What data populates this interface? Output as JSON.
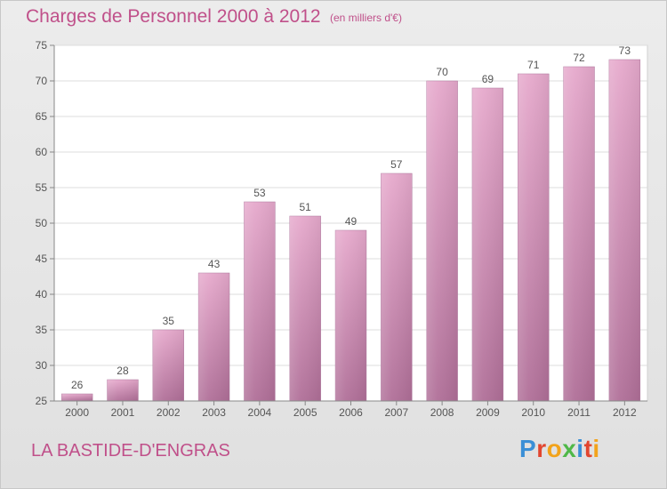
{
  "header": {
    "title": "Charges de Personnel 2000 à 2012",
    "subtitle": "(en milliers d'€)"
  },
  "footer": {
    "location": "LA BASTIDE-D'ENGRAS",
    "logo_text": "Proxiti",
    "logo_letters": [
      {
        "char": "P",
        "color": "#3a8fd6"
      },
      {
        "char": "r",
        "color": "#e2462f"
      },
      {
        "char": "o",
        "color": "#f2a31b"
      },
      {
        "char": "x",
        "color": "#4fb848"
      },
      {
        "char": "i",
        "color": "#3a8fd6"
      },
      {
        "char": "t",
        "color": "#e2462f"
      },
      {
        "char": "i",
        "color": "#f2a31b"
      }
    ]
  },
  "chart_data": {
    "type": "bar",
    "title": "Charges de Personnel 2000 à 2012",
    "subtitle": "(en milliers d'€)",
    "xlabel": "",
    "ylabel": "",
    "categories": [
      "2000",
      "2001",
      "2002",
      "2003",
      "2004",
      "2005",
      "2006",
      "2007",
      "2008",
      "2009",
      "2010",
      "2011",
      "2012"
    ],
    "values": [
      26,
      28,
      35,
      43,
      53,
      51,
      49,
      57,
      70,
      69,
      71,
      72,
      73
    ],
    "ylim": [
      25,
      75
    ],
    "yticks": [
      25,
      30,
      35,
      40,
      45,
      50,
      55,
      60,
      65,
      70,
      75
    ],
    "grid": true,
    "legend": "none",
    "bar_color_top": "#e6a9cc",
    "bar_color_bottom": "#b06f98",
    "text_color": "#c0508a"
  }
}
